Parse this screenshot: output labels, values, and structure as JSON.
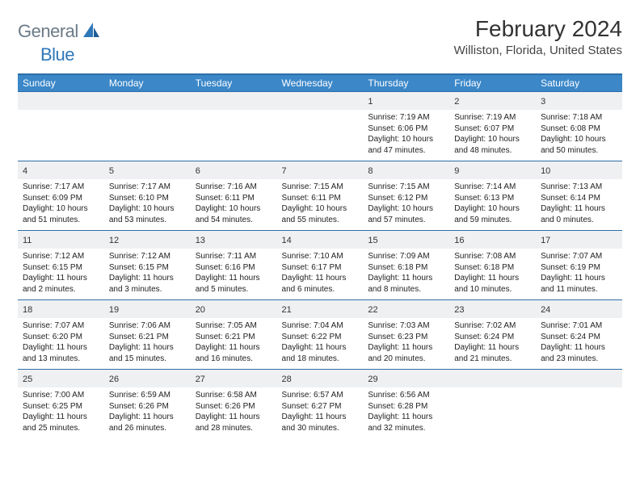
{
  "logo": {
    "general": "General",
    "blue": "Blue"
  },
  "title": "February 2024",
  "location": "Williston, Florida, United States",
  "colors": {
    "header_bg": "#3b87c8",
    "border": "#2e6ea8",
    "daynum_bg": "#eef0f2",
    "logo_gray": "#6b7a87",
    "logo_blue": "#2e77b8"
  },
  "weekdays": [
    "Sunday",
    "Monday",
    "Tuesday",
    "Wednesday",
    "Thursday",
    "Friday",
    "Saturday"
  ],
  "weeks": [
    [
      null,
      null,
      null,
      null,
      {
        "n": "1",
        "sr": "Sunrise: 7:19 AM",
        "ss": "Sunset: 6:06 PM",
        "dl": "Daylight: 10 hours and 47 minutes."
      },
      {
        "n": "2",
        "sr": "Sunrise: 7:19 AM",
        "ss": "Sunset: 6:07 PM",
        "dl": "Daylight: 10 hours and 48 minutes."
      },
      {
        "n": "3",
        "sr": "Sunrise: 7:18 AM",
        "ss": "Sunset: 6:08 PM",
        "dl": "Daylight: 10 hours and 50 minutes."
      }
    ],
    [
      {
        "n": "4",
        "sr": "Sunrise: 7:17 AM",
        "ss": "Sunset: 6:09 PM",
        "dl": "Daylight: 10 hours and 51 minutes."
      },
      {
        "n": "5",
        "sr": "Sunrise: 7:17 AM",
        "ss": "Sunset: 6:10 PM",
        "dl": "Daylight: 10 hours and 53 minutes."
      },
      {
        "n": "6",
        "sr": "Sunrise: 7:16 AM",
        "ss": "Sunset: 6:11 PM",
        "dl": "Daylight: 10 hours and 54 minutes."
      },
      {
        "n": "7",
        "sr": "Sunrise: 7:15 AM",
        "ss": "Sunset: 6:11 PM",
        "dl": "Daylight: 10 hours and 55 minutes."
      },
      {
        "n": "8",
        "sr": "Sunrise: 7:15 AM",
        "ss": "Sunset: 6:12 PM",
        "dl": "Daylight: 10 hours and 57 minutes."
      },
      {
        "n": "9",
        "sr": "Sunrise: 7:14 AM",
        "ss": "Sunset: 6:13 PM",
        "dl": "Daylight: 10 hours and 59 minutes."
      },
      {
        "n": "10",
        "sr": "Sunrise: 7:13 AM",
        "ss": "Sunset: 6:14 PM",
        "dl": "Daylight: 11 hours and 0 minutes."
      }
    ],
    [
      {
        "n": "11",
        "sr": "Sunrise: 7:12 AM",
        "ss": "Sunset: 6:15 PM",
        "dl": "Daylight: 11 hours and 2 minutes."
      },
      {
        "n": "12",
        "sr": "Sunrise: 7:12 AM",
        "ss": "Sunset: 6:15 PM",
        "dl": "Daylight: 11 hours and 3 minutes."
      },
      {
        "n": "13",
        "sr": "Sunrise: 7:11 AM",
        "ss": "Sunset: 6:16 PM",
        "dl": "Daylight: 11 hours and 5 minutes."
      },
      {
        "n": "14",
        "sr": "Sunrise: 7:10 AM",
        "ss": "Sunset: 6:17 PM",
        "dl": "Daylight: 11 hours and 6 minutes."
      },
      {
        "n": "15",
        "sr": "Sunrise: 7:09 AM",
        "ss": "Sunset: 6:18 PM",
        "dl": "Daylight: 11 hours and 8 minutes."
      },
      {
        "n": "16",
        "sr": "Sunrise: 7:08 AM",
        "ss": "Sunset: 6:18 PM",
        "dl": "Daylight: 11 hours and 10 minutes."
      },
      {
        "n": "17",
        "sr": "Sunrise: 7:07 AM",
        "ss": "Sunset: 6:19 PM",
        "dl": "Daylight: 11 hours and 11 minutes."
      }
    ],
    [
      {
        "n": "18",
        "sr": "Sunrise: 7:07 AM",
        "ss": "Sunset: 6:20 PM",
        "dl": "Daylight: 11 hours and 13 minutes."
      },
      {
        "n": "19",
        "sr": "Sunrise: 7:06 AM",
        "ss": "Sunset: 6:21 PM",
        "dl": "Daylight: 11 hours and 15 minutes."
      },
      {
        "n": "20",
        "sr": "Sunrise: 7:05 AM",
        "ss": "Sunset: 6:21 PM",
        "dl": "Daylight: 11 hours and 16 minutes."
      },
      {
        "n": "21",
        "sr": "Sunrise: 7:04 AM",
        "ss": "Sunset: 6:22 PM",
        "dl": "Daylight: 11 hours and 18 minutes."
      },
      {
        "n": "22",
        "sr": "Sunrise: 7:03 AM",
        "ss": "Sunset: 6:23 PM",
        "dl": "Daylight: 11 hours and 20 minutes."
      },
      {
        "n": "23",
        "sr": "Sunrise: 7:02 AM",
        "ss": "Sunset: 6:24 PM",
        "dl": "Daylight: 11 hours and 21 minutes."
      },
      {
        "n": "24",
        "sr": "Sunrise: 7:01 AM",
        "ss": "Sunset: 6:24 PM",
        "dl": "Daylight: 11 hours and 23 minutes."
      }
    ],
    [
      {
        "n": "25",
        "sr": "Sunrise: 7:00 AM",
        "ss": "Sunset: 6:25 PM",
        "dl": "Daylight: 11 hours and 25 minutes."
      },
      {
        "n": "26",
        "sr": "Sunrise: 6:59 AM",
        "ss": "Sunset: 6:26 PM",
        "dl": "Daylight: 11 hours and 26 minutes."
      },
      {
        "n": "27",
        "sr": "Sunrise: 6:58 AM",
        "ss": "Sunset: 6:26 PM",
        "dl": "Daylight: 11 hours and 28 minutes."
      },
      {
        "n": "28",
        "sr": "Sunrise: 6:57 AM",
        "ss": "Sunset: 6:27 PM",
        "dl": "Daylight: 11 hours and 30 minutes."
      },
      {
        "n": "29",
        "sr": "Sunrise: 6:56 AM",
        "ss": "Sunset: 6:28 PM",
        "dl": "Daylight: 11 hours and 32 minutes."
      },
      null,
      null
    ]
  ]
}
